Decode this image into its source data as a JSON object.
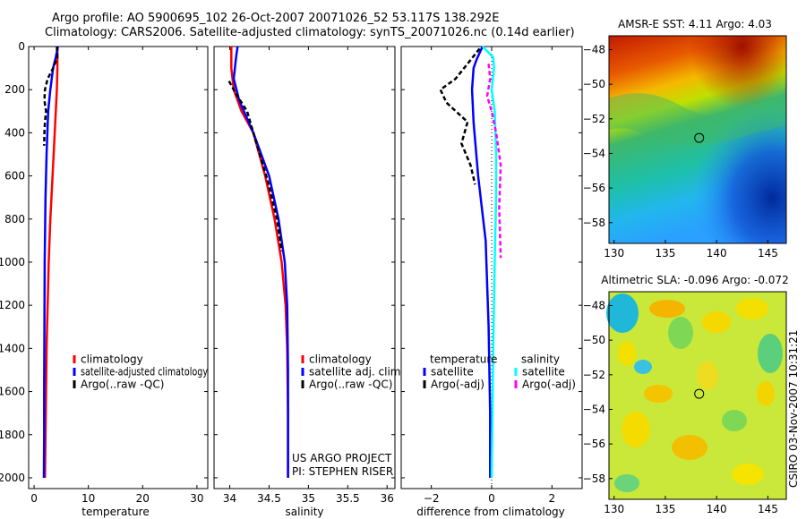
{
  "header": {
    "line1": "Argo profile: AO 5900695_102 26-Oct-2007 20071026_52 53.117S 138.292E",
    "line2": "Climatology: CARS2006. Satellite-adjusted climatology: synTS_20071026.nc (0.14d earlier)"
  },
  "colors": {
    "red": "#ff0000",
    "blue": "#0000ff",
    "black": "#000000",
    "cyan": "#00ffff",
    "magenta": "#ff00ff"
  },
  "chart_data": [
    {
      "type": "line",
      "xlabel": "temperature",
      "ylim": [
        2050,
        0
      ],
      "xlim": [
        -1,
        32
      ],
      "xticks": [
        0,
        10,
        20,
        30
      ],
      "yticks": [
        0,
        200,
        400,
        600,
        800,
        1000,
        1200,
        1400,
        1600,
        1800,
        2000
      ],
      "legend": [
        "climatology",
        "satellite-adjusted climatology",
        "Argo(..raw -QC)"
      ],
      "series": [
        {
          "name": "climatology",
          "color": "red",
          "dash": "",
          "x": [
            4.3,
            4.3,
            4.2,
            4.0,
            3.8,
            3.4,
            3.0,
            2.7,
            2.5,
            2.3,
            2.2,
            2.1,
            2.0
          ],
          "y": [
            0,
            100,
            200,
            300,
            400,
            600,
            800,
            1000,
            1200,
            1400,
            1600,
            1800,
            2000
          ]
        },
        {
          "name": "satellite-adjusted climatology",
          "color": "blue",
          "dash": "",
          "x": [
            4.4,
            4.0,
            3.5,
            3.0,
            2.6,
            2.3,
            2.1,
            1.95,
            1.9,
            1.85,
            1.85,
            1.8
          ],
          "y": [
            0,
            50,
            100,
            200,
            300,
            500,
            700,
            1000,
            1300,
            1600,
            1800,
            2000
          ]
        },
        {
          "name": "Argo(..raw -QC)",
          "color": "black",
          "dash": "5,3",
          "x": [
            4.2,
            4.3,
            3.5,
            2.5,
            2.0,
            1.9,
            2.2,
            2.0,
            1.9,
            1.85
          ],
          "y": [
            0,
            50,
            100,
            150,
            200,
            250,
            300,
            350,
            400,
            460
          ]
        }
      ]
    },
    {
      "type": "line",
      "xlabel": "salinity",
      "ylim": [
        2050,
        0
      ],
      "xlim": [
        33.8,
        36.1
      ],
      "xticks": [
        34,
        34.5,
        35,
        35.5,
        36
      ],
      "xticklabels": [
        "34",
        "34.5",
        "35",
        "35.5",
        "36"
      ],
      "legend": [
        "climatology",
        "satellite adj. clim.",
        "Argo(..raw -QC)"
      ],
      "series": [
        {
          "name": "climatology",
          "color": "red",
          "dash": "",
          "x": [
            34.02,
            34.02,
            34.05,
            34.15,
            34.3,
            34.45,
            34.57,
            34.66,
            34.71,
            34.73,
            34.74,
            34.74
          ],
          "y": [
            0,
            100,
            200,
            300,
            400,
            600,
            800,
            1000,
            1200,
            1400,
            1700,
            2000
          ]
        },
        {
          "name": "satellite adj. clim.",
          "color": "blue",
          "dash": "",
          "x": [
            34.1,
            34.08,
            34.05,
            34.12,
            34.3,
            34.5,
            34.62,
            34.7,
            34.73,
            34.74,
            34.74
          ],
          "y": [
            0,
            50,
            150,
            250,
            400,
            600,
            800,
            1000,
            1200,
            1500,
            2000
          ]
        },
        {
          "name": "Argo(..raw -QC)",
          "color": "black",
          "dash": "5,3",
          "x": [
            33.99,
            34.08,
            34.22,
            34.34,
            34.48,
            34.6,
            34.66
          ],
          "y": [
            160,
            220,
            300,
            450,
            620,
            800,
            950
          ]
        }
      ]
    },
    {
      "type": "line",
      "xlabel": "difference from climatology",
      "ylim": [
        2050,
        0
      ],
      "xlim": [
        -3,
        3
      ],
      "xticks": [
        -2,
        0,
        2
      ],
      "xticklabels": [
        "−2",
        "0",
        "2"
      ],
      "legend_temperature": {
        "heading": "temperature",
        "items": [
          "satellite",
          "Argo(-adj)"
        ]
      },
      "legend_salinity": {
        "heading": "salinity",
        "items": [
          "satellite",
          "Argo(-adj)"
        ]
      },
      "series": [
        {
          "name": "temperature satellite",
          "color": "blue",
          "dash": "",
          "x": [
            -0.3,
            -0.4,
            -0.5,
            -0.6,
            -0.65,
            -0.6,
            -0.45,
            -0.2,
            -0.1,
            -0.05,
            -0.05
          ],
          "y": [
            0,
            30,
            60,
            100,
            200,
            350,
            600,
            900,
            1300,
            1700,
            2000
          ]
        },
        {
          "name": "temperature Argo(-adj)",
          "color": "black",
          "dash": "5,3",
          "x": [
            -0.4,
            -0.8,
            -1.2,
            -1.7,
            -1.5,
            -0.8,
            -1.0,
            -0.7,
            -0.55
          ],
          "y": [
            10,
            80,
            150,
            200,
            260,
            350,
            450,
            550,
            640
          ]
        },
        {
          "name": "salinity satellite",
          "color": "cyan",
          "dash": "",
          "x": [
            -0.3,
            0.05,
            0.08,
            0.0,
            0.1,
            0.15,
            0.15,
            0.1,
            0.05,
            0.0
          ],
          "y": [
            0,
            50,
            100,
            200,
            300,
            500,
            700,
            1000,
            1400,
            2000
          ]
        },
        {
          "name": "salinity Argo(-adj)",
          "color": "magenta",
          "dash": "5,3",
          "x": [
            -0.1,
            -0.05,
            -0.15,
            0.0,
            0.15,
            0.3,
            0.25,
            0.3
          ],
          "y": [
            80,
            150,
            230,
            300,
            400,
            550,
            750,
            980
          ]
        }
      ]
    },
    {
      "type": "heatmap",
      "title": "AMSR-E SST: 4.11  Argo: 4.03",
      "xlim": [
        129.5,
        146.8
      ],
      "ylim": [
        -59.2,
        -47.2
      ],
      "xticks": [
        130,
        135,
        140,
        145
      ],
      "yticks": [
        -48,
        -50,
        -52,
        -54,
        -56,
        -58
      ],
      "marker": {
        "lon": 138.3,
        "lat": -53.1
      }
    },
    {
      "type": "heatmap",
      "title": "Altimetric SLA: -0.096  Argo: -0.072",
      "xlim": [
        129.5,
        146.8
      ],
      "ylim": [
        -59.2,
        -47.2
      ],
      "xticks": [
        130,
        135,
        140,
        145
      ],
      "yticks": [
        -48,
        -50,
        -52,
        -54,
        -56,
        -58
      ],
      "marker": {
        "lon": 138.3,
        "lat": -53.1
      }
    }
  ],
  "annotations": {
    "project": "US ARGO PROJECT",
    "pi": "PI: STEPHEN RISER",
    "stamp": "CSIRO 03-Nov-2007 10:31:21"
  }
}
